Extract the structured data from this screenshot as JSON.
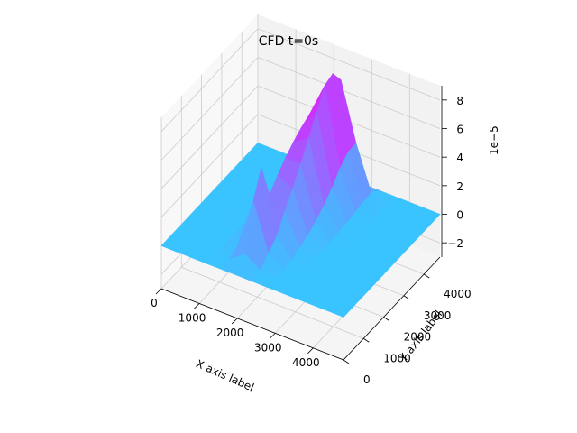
{
  "chart_data": {
    "type": "surface3d",
    "title": "CFD t=0s",
    "xlabel": "X axis label",
    "ylabel": "Y axis label",
    "zlabel": "",
    "z_offset_label": "1e−5",
    "x_ticks": [
      "0",
      "1000",
      "2000",
      "3000",
      "4000"
    ],
    "y_ticks": [
      "0",
      "1000",
      "2000",
      "3000",
      "4000"
    ],
    "z_ticks": [
      "−2",
      "0",
      "2",
      "4",
      "6",
      "8"
    ],
    "xlim": [
      0,
      4800
    ],
    "ylim": [
      0,
      4800
    ],
    "zlim": [
      -3,
      9
    ],
    "z_scale": 1e-05,
    "colormap": "cool",
    "grid": true,
    "surface": {
      "description_free": true,
      "x": [
        0,
        400,
        800,
        1200,
        1600,
        2000,
        2400,
        2800,
        3200,
        3600,
        4000,
        4400,
        4800
      ],
      "y": [
        0,
        400,
        800,
        1200,
        1600,
        2000,
        2400,
        2800,
        3200,
        3600,
        4000,
        4400,
        4800
      ],
      "peak_value": 8.7,
      "base_value": 0
    }
  }
}
